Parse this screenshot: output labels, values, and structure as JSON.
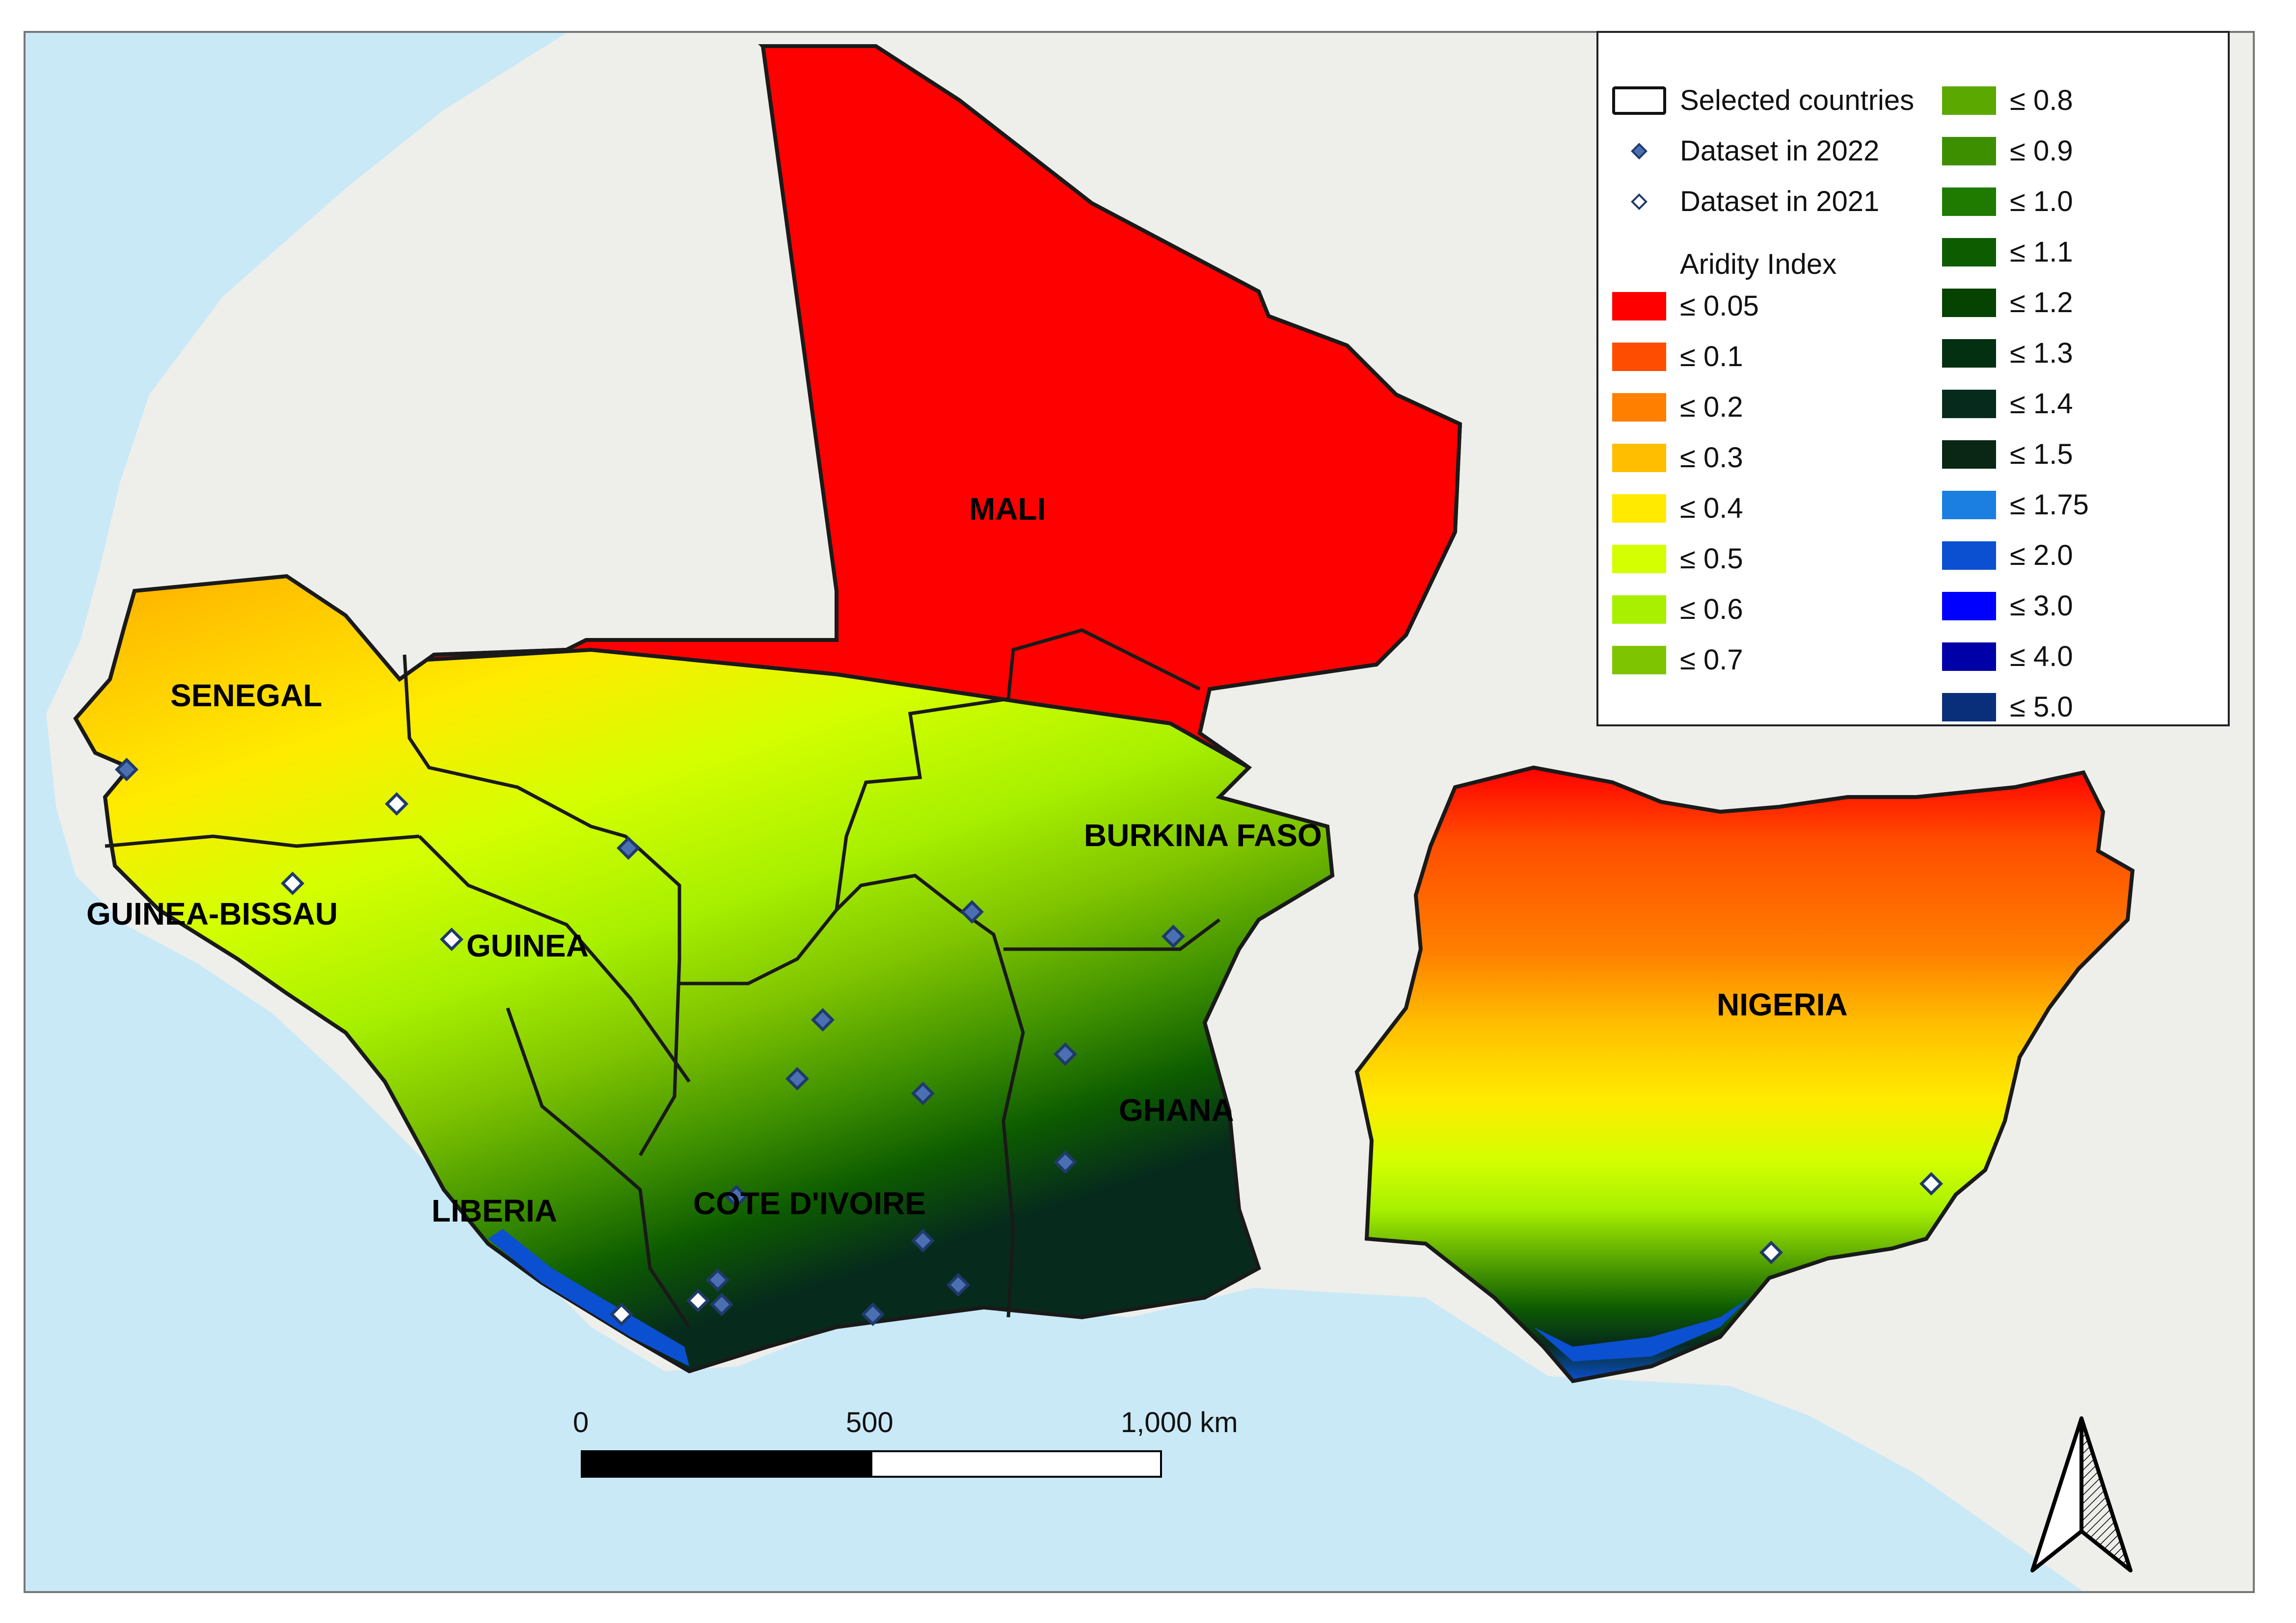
{
  "map": {
    "country_labels": {
      "mali": "MALI",
      "senegal": "SENEGAL",
      "guinea_bissau": "GUINEA-BISSAU",
      "guinea": "GUINEA",
      "burkina_faso": "BURKINA FASO",
      "nigeria": "NIGERIA",
      "ghana": "GHANA",
      "liberia": "LIBERIA",
      "cote_divoire": "COTE D'IVOIRE"
    },
    "colors": {
      "ocean": "#c9e9f7",
      "land": "#eeeeea",
      "border": "#1a1a1a",
      "marker_2022": "#4a70b2",
      "marker_2021": "#ffffff"
    }
  },
  "legend": {
    "selected_countries": "Selected countries",
    "dataset_2022": "Dataset in 2022",
    "dataset_2021": "Dataset in 2021",
    "aridity_title": "Aridity Index",
    "classes": [
      {
        "label": "≤ 0.05",
        "color": "#ff0000"
      },
      {
        "label": "≤ 0.1",
        "color": "#ff4d00"
      },
      {
        "label": "≤ 0.2",
        "color": "#ff7f00"
      },
      {
        "label": "≤ 0.3",
        "color": "#ffbf00"
      },
      {
        "label": "≤ 0.4",
        "color": "#ffea00"
      },
      {
        "label": "≤ 0.5",
        "color": "#d4ff00"
      },
      {
        "label": "≤ 0.6",
        "color": "#a8f000"
      },
      {
        "label": "≤ 0.7",
        "color": "#7fc400"
      },
      {
        "label": "≤ 0.8",
        "color": "#5aa800"
      },
      {
        "label": "≤ 0.9",
        "color": "#3d8f00"
      },
      {
        "label": "≤ 1.0",
        "color": "#1f7a00"
      },
      {
        "label": "≤ 1.1",
        "color": "#0d5c00"
      },
      {
        "label": "≤ 1.2",
        "color": "#064200"
      },
      {
        "label": "≤ 1.3",
        "color": "#033010"
      },
      {
        "label": "≤ 1.4",
        "color": "#062b1c"
      },
      {
        "label": "≤ 1.5",
        "color": "#0a2614"
      },
      {
        "label": "≤ 1.75",
        "color": "#1a7fe0"
      },
      {
        "label": "≤ 2.0",
        "color": "#0a50d0"
      },
      {
        "label": "≤ 3.0",
        "color": "#0000ff"
      },
      {
        "label": "≤ 4.0",
        "color": "#0000a8"
      },
      {
        "label": "≤ 5.0",
        "color": "#0a2f7a"
      }
    ]
  },
  "scale_bar": {
    "label_0": "0",
    "label_500": "500",
    "label_1000": "1,000 km"
  },
  "north_arrow": {
    "icon": "north-arrow-icon"
  }
}
